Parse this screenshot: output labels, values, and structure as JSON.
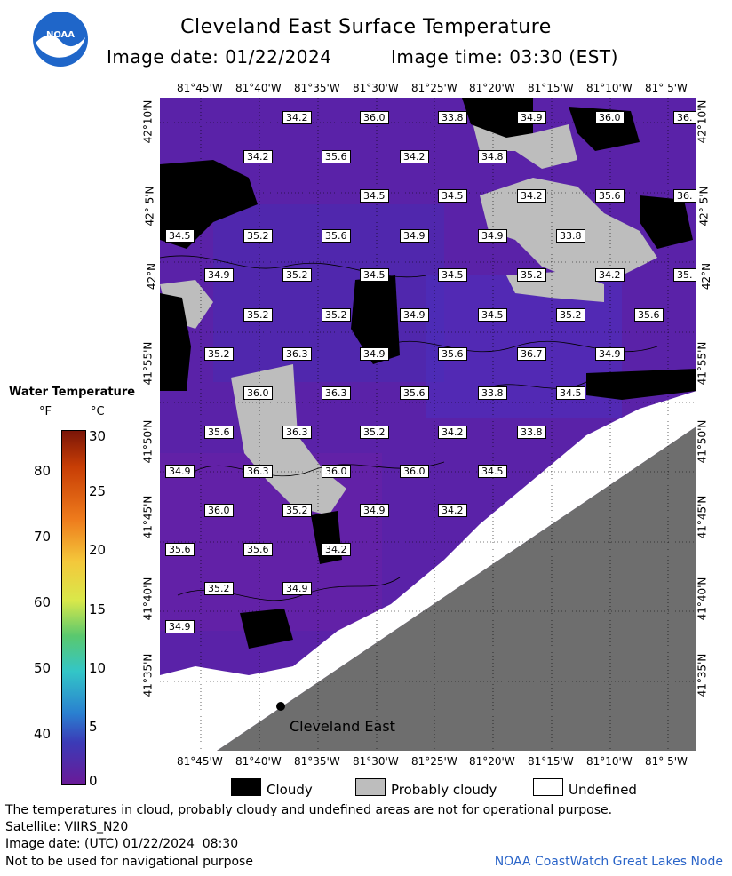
{
  "header": {
    "title": "Cleveland East Surface Temperature",
    "image_date": "Image date: 01/22/2024",
    "image_time": "Image time: 03:30 (EST)",
    "logo_text": "NOAA"
  },
  "map": {
    "location_label": "Cleveland East",
    "top_lon_labels": [
      "81°45'W",
      "81°40'W",
      "81°35'W",
      "81°30'W",
      "81°25'W",
      "81°20'W",
      "81°15'W",
      "81°10'W",
      "81° 5'W"
    ],
    "bottom_lon_labels": [
      "81°45'W",
      "81°40'W",
      "81°35'W",
      "81°30'W",
      "81°25'W",
      "81°20'W",
      "81°15'W",
      "81°10'W",
      "81° 5'W"
    ],
    "lat_labels": [
      "42°10'N",
      "42° 5'N",
      "42°N",
      "41°55'N",
      "41°50'N",
      "41°45'N",
      "41°40'N",
      "41°35'N"
    ],
    "temperatures": [
      "34.2",
      "36.0",
      "33.8",
      "34.9",
      "36.0",
      "36.",
      "34.2",
      "35.6",
      "34.2",
      "34.8",
      "34.5",
      "34.5",
      "34.2",
      "35.6",
      "36.",
      "34.5",
      "35.2",
      "35.6",
      "34.9",
      "34.9",
      "33.8",
      "34.9",
      "35.2",
      "34.5",
      "34.5",
      "35.2",
      "34.2",
      "35.",
      "35.2",
      "35.2",
      "34.9",
      "34.5",
      "35.2",
      "35.6",
      "35.2",
      "36.3",
      "34.9",
      "35.6",
      "36.7",
      "34.9",
      "36.0",
      "36.3",
      "35.6",
      "33.8",
      "34.5",
      "35.6",
      "36.3",
      "35.2",
      "34.2",
      "33.8",
      "34.9",
      "36.3",
      "36.0",
      "36.0",
      "34.5",
      "36.0",
      "35.2",
      "34.9",
      "34.2",
      "35.6",
      "35.6",
      "34.2",
      "35.2",
      "34.9",
      "34.9"
    ],
    "colors": {
      "water": "#5a22a8",
      "cloud": "#000000",
      "probably_cloudy": "#bdbdbd",
      "land": "#6e6e6e",
      "undefined": "#ffffff"
    }
  },
  "scale": {
    "title": "Water Temperature",
    "unit_f": "°F",
    "unit_c": "°C",
    "f_ticks": [
      "80",
      "70",
      "60",
      "50",
      "40"
    ],
    "c_ticks": [
      "30",
      "25",
      "20",
      "15",
      "10",
      "5",
      "0"
    ]
  },
  "legend": {
    "cloudy": "Cloudy",
    "probably_cloudy": "Probably cloudy",
    "undefined": "Undefined"
  },
  "footer": {
    "disclaimer": "The temperatures in cloud, probably cloudy and undefined areas are not for operational purpose.",
    "satellite": "Satellite: VIIRS_N20",
    "utc_date": "Image date: (UTC) 01/22/2024  08:30",
    "nav_warning": "Not to be used for navigational purpose",
    "credit": "NOAA CoastWatch Great Lakes Node"
  }
}
